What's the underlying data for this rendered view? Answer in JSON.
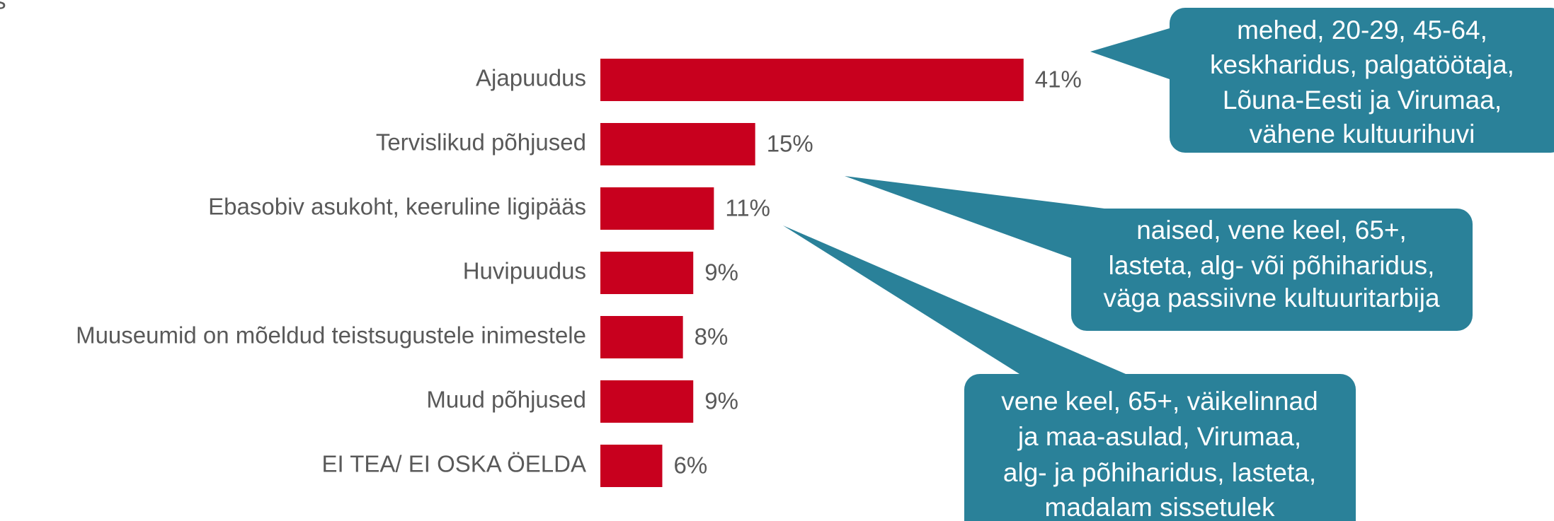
{
  "chart_data": {
    "type": "bar",
    "orientation": "horizontal",
    "title": "s",
    "categories": [
      "Ajapuudus",
      "Tervislikud põhjused",
      "Ebasobiv asukoht, keeruline ligipääs",
      "Huvipuudus",
      "Muuseumid on mõeldud teistsugustele inimestele",
      "Muud põhjused",
      "EI TEA/ EI OSKA ÖELDA"
    ],
    "values": [
      41,
      15,
      11,
      9,
      8,
      9,
      6
    ],
    "value_labels": [
      "41%",
      "15%",
      "11%",
      "9%",
      "8%",
      "9%",
      "6%"
    ],
    "color": "#c8001e",
    "annotations": [
      {
        "lines": [
          "mehed, 20-29, 45-64,",
          "keskharidus, palgatöötaja,",
          "Lõuna-Eesti ja Virumaa,",
          "vähene kultuurihuvi"
        ],
        "color": "#2a8199"
      },
      {
        "lines": [
          "naised, vene keel, 65+,",
          "lasteta, alg- või põhiharidus,",
          "väga passiivne kultuuritarbija"
        ],
        "color": "#2a8199"
      },
      {
        "lines": [
          "vene keel, 65+, väikelinnad",
          "ja maa-asulad, Virumaa,",
          "alg- ja põhiharidus, lasteta,",
          "madalam sissetulek"
        ],
        "color": "#2a8199"
      }
    ]
  }
}
